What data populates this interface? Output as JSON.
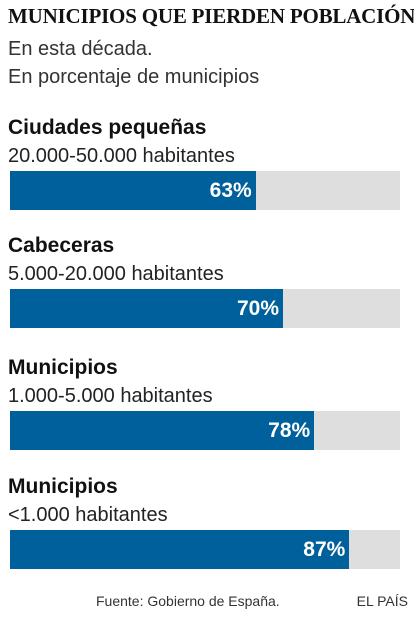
{
  "chart_data": {
    "type": "bar",
    "title": "MUNICIPIOS QUE PIERDEN POBLACIÓN",
    "subtitle_lines": [
      "En esta década.",
      "En porcentaje de municipios"
    ],
    "categories": [
      {
        "name": "Ciudades pequeñas",
        "range": "20.000-50.000 habitantes"
      },
      {
        "name": "Cabeceras",
        "range": "5.000-20.000 habitantes"
      },
      {
        "name": "Municipios",
        "range": "1.000-5.000 habitantes"
      },
      {
        "name": "Municipios",
        "range": "<1.000 habitantes"
      }
    ],
    "values": [
      63,
      70,
      78,
      87
    ],
    "value_labels": [
      "63%",
      "70%",
      "78%",
      "87%"
    ],
    "ylim": [
      0,
      100
    ],
    "orientation": "horizontal",
    "colors": {
      "bar": "#00609b",
      "track": "#dedede"
    }
  },
  "footer": {
    "source": "Fuente: Gobierno de España.",
    "brand": "EL PAÍS"
  }
}
